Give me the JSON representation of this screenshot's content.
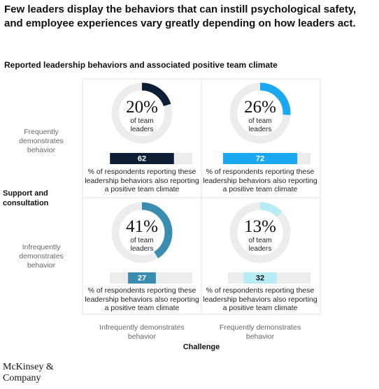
{
  "chart_data": {
    "type": "donut-matrix",
    "title": "Few leaders display the behaviors that can instill psychological safety, and employee experiences vary greatly depending on how leaders act.",
    "subtitle": "Reported leadership behaviors and associated positive team climate",
    "y_axis_label": "Support and consultation",
    "x_axis_label": "Challenge",
    "row_labels": [
      "Frequently demonstrates behavior",
      "Infrequently demonstrates behavior"
    ],
    "column_labels": [
      "Infrequently demonstrates behavior",
      "Frequently demonstrates behavior"
    ],
    "donut_caption": "of team leaders",
    "bar_caption": "% of respondents reporting these leadership behaviors also reporting a positive team climate",
    "xlim": [
      0,
      80
    ],
    "quadrants": [
      [
        {
          "value": 20,
          "value_label": "20%",
          "climate": 62,
          "color": "#0e1f35"
        },
        {
          "value": 26,
          "value_label": "26%",
          "climate": 72,
          "color": "#1aa8f0"
        }
      ],
      [
        {
          "value": 41,
          "value_label": "41%",
          "climate": 27,
          "color": "#3a8db0"
        },
        {
          "value": 13,
          "value_label": "13%",
          "climate": 32,
          "color": "#b8ecf5"
        }
      ]
    ],
    "source": "McKinsey & Company"
  }
}
